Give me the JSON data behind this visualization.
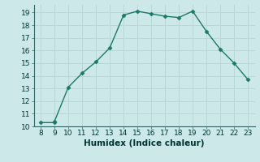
{
  "x": [
    8,
    9,
    9,
    10,
    11,
    12,
    13,
    14,
    15,
    16,
    17,
    18,
    19,
    20,
    21,
    22,
    23
  ],
  "y": [
    10.3,
    10.3,
    10.4,
    13.1,
    14.2,
    15.1,
    16.2,
    18.8,
    19.1,
    18.9,
    18.7,
    18.6,
    19.1,
    17.5,
    16.1,
    15.0,
    13.7
  ],
  "line_color": "#1a7a6a",
  "marker": "D",
  "marker_size": 2.5,
  "bg_color": "#cce8e8",
  "grid_color": "#b8d8d8",
  "xlabel": "Humidex (Indice chaleur)",
  "xlim": [
    7.5,
    23.5
  ],
  "ylim": [
    10,
    19.6
  ],
  "xticks": [
    8,
    9,
    10,
    11,
    12,
    13,
    14,
    15,
    16,
    17,
    18,
    19,
    20,
    21,
    22,
    23
  ],
  "yticks": [
    10,
    11,
    12,
    13,
    14,
    15,
    16,
    17,
    18,
    19
  ],
  "tick_fontsize": 6.5,
  "xlabel_fontsize": 7.5
}
